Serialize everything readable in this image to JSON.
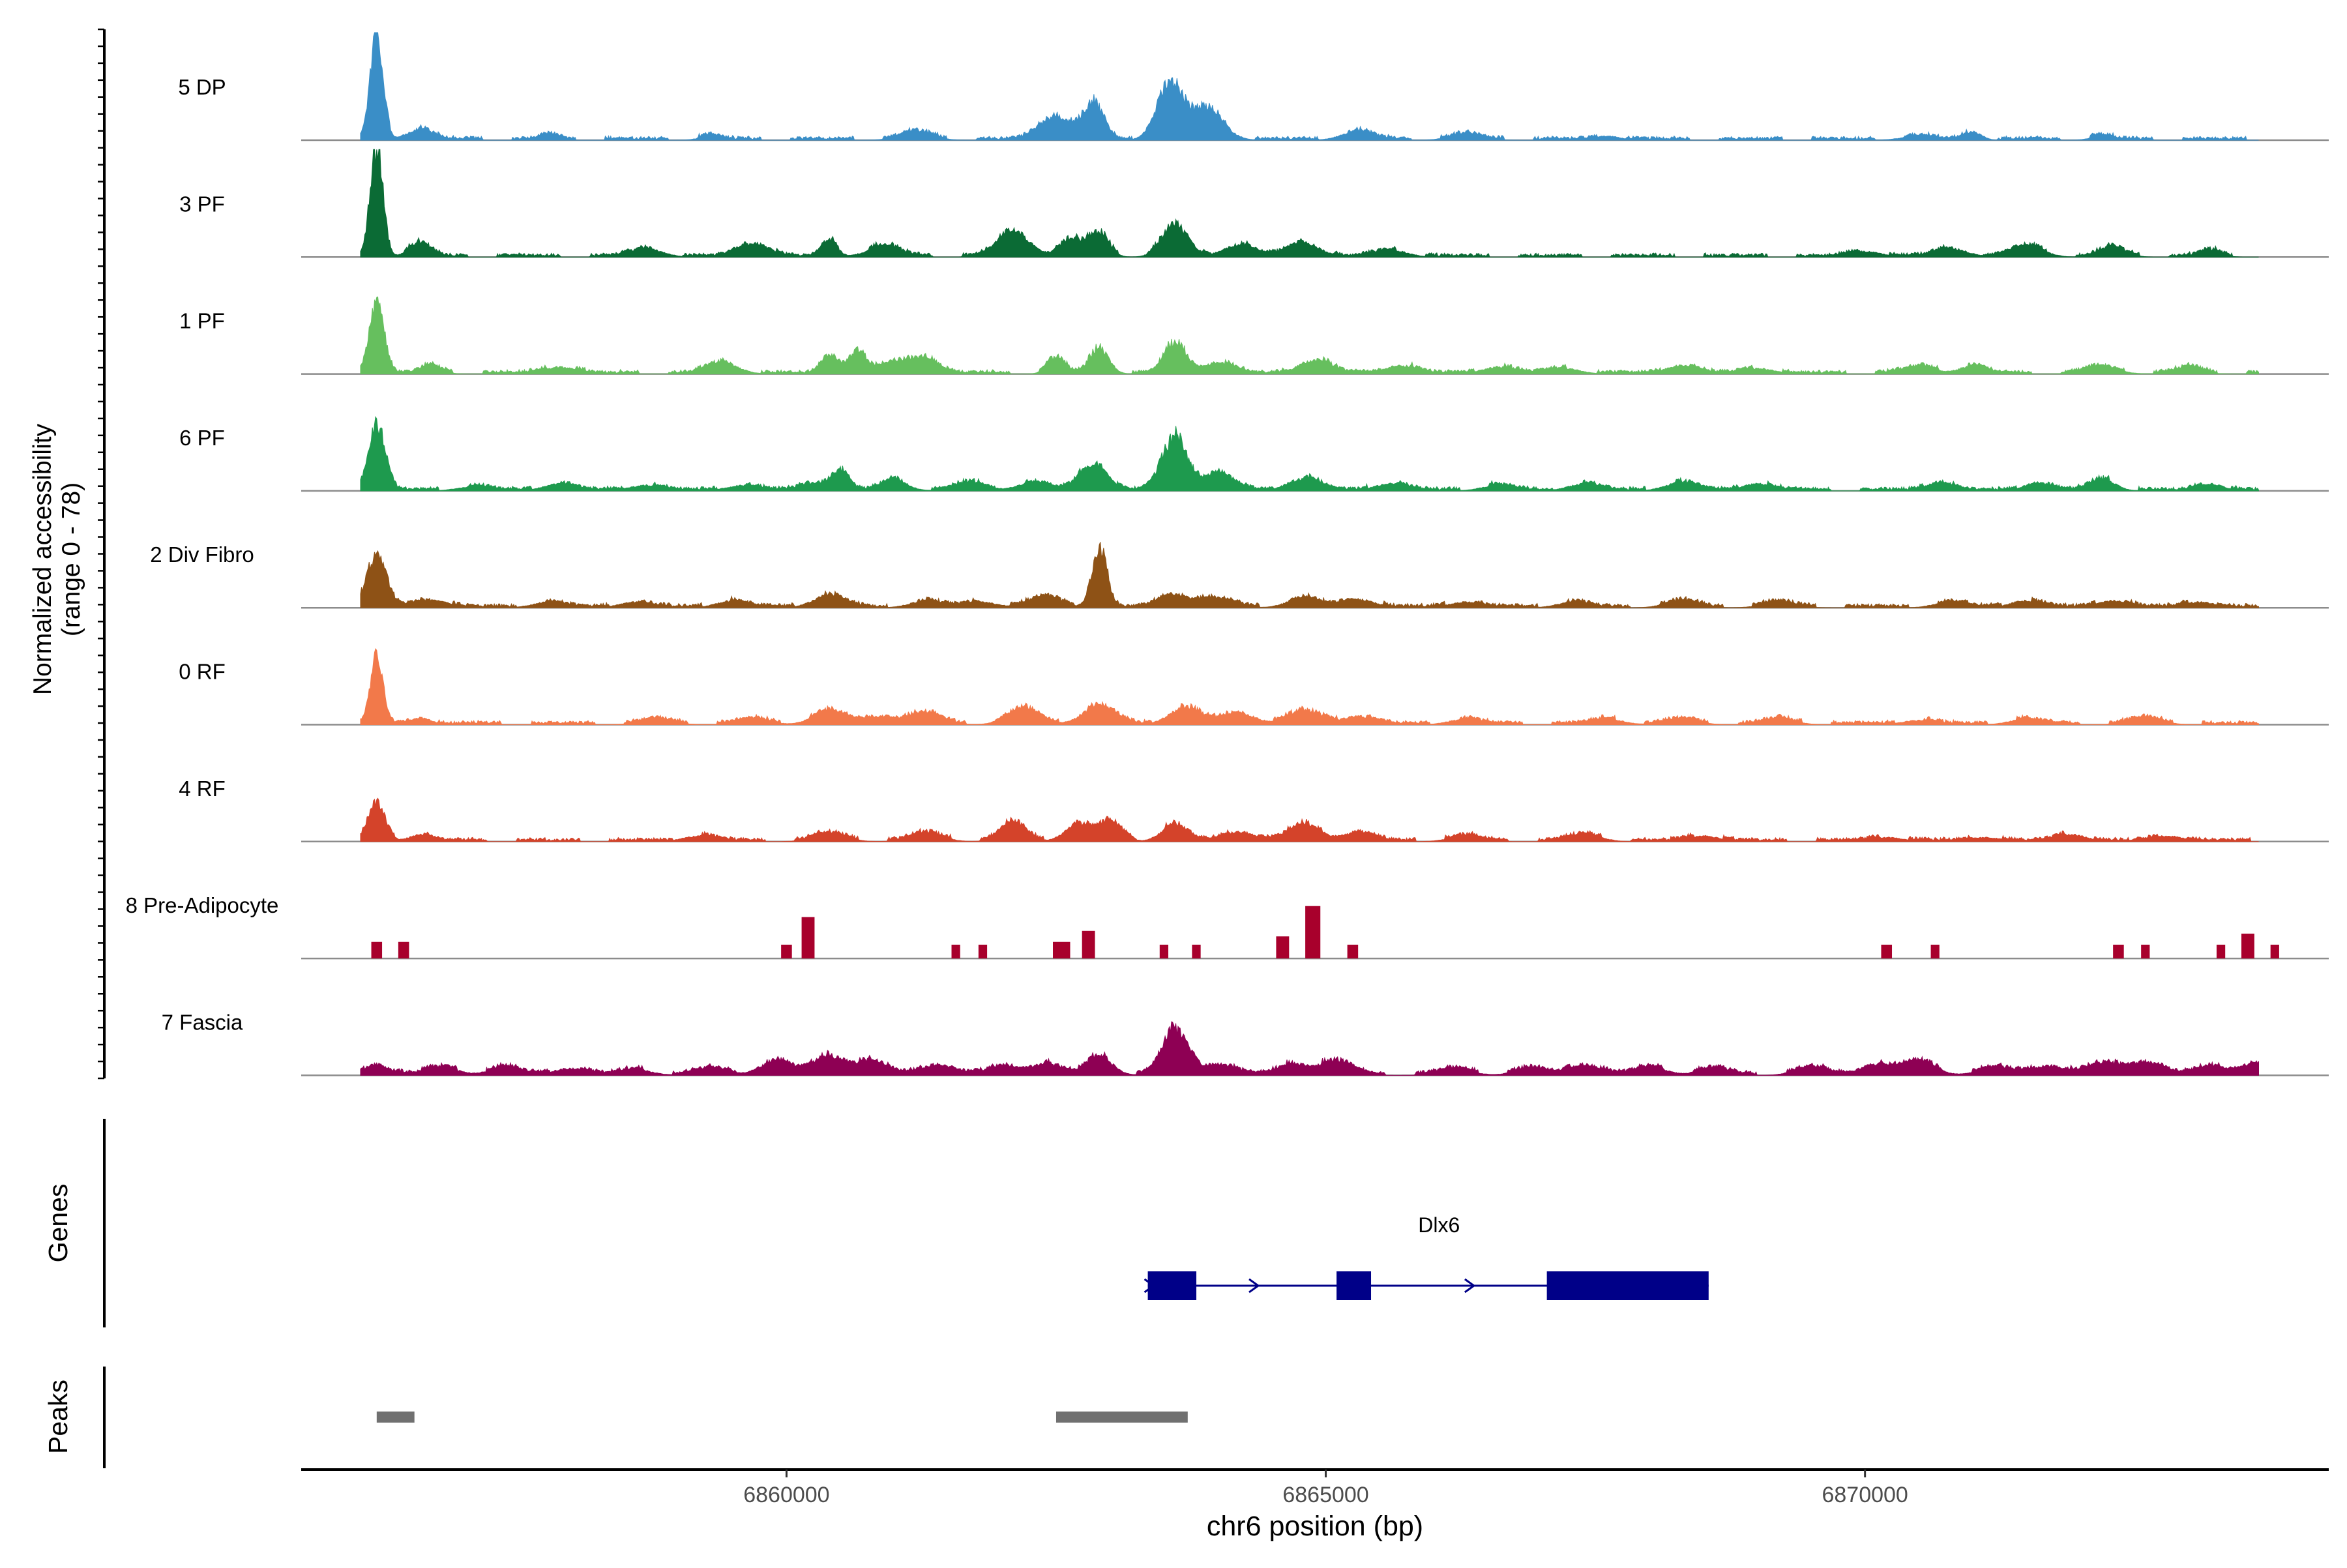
{
  "chart_data": {
    "type": "area",
    "title": "",
    "ylabel_line1": "Normalized accessibility",
    "ylabel_line2": "(range 0 - 78)",
    "ylim": [
      0,
      78
    ],
    "xlabel": "chr6 position (bp)",
    "xlim": [
      6855500,
      6874300
    ],
    "xticks": [
      6860000,
      6865000,
      6870000
    ],
    "xtick_labels": [
      "6860000",
      "6865000",
      "6870000"
    ],
    "tracks": [
      {
        "name": "5 DP",
        "color": "#3A8EC7",
        "peaks": [
          [
            6856200,
            78,
            60
          ],
          [
            6856600,
            8,
            120
          ],
          [
            6857800,
            4,
            80
          ],
          [
            6859300,
            3,
            100
          ],
          [
            6861200,
            6,
            150
          ],
          [
            6862500,
            18,
            150
          ],
          [
            6862850,
            26,
            90
          ],
          [
            6863550,
            40,
            120
          ],
          [
            6863900,
            22,
            150
          ],
          [
            6865300,
            6,
            150
          ],
          [
            6866300,
            4,
            150
          ],
          [
            6867600,
            3,
            120
          ],
          [
            6870500,
            3,
            150
          ],
          [
            6871000,
            6,
            80
          ],
          [
            6872200,
            3,
            100
          ]
        ]
      },
      {
        "name": "3 PF",
        "color": "#0B6B35",
        "peaks": [
          [
            6856200,
            78,
            60
          ],
          [
            6856600,
            10,
            100
          ],
          [
            6858700,
            6,
            150
          ],
          [
            6859700,
            10,
            150
          ],
          [
            6860400,
            12,
            70
          ],
          [
            6860900,
            8,
            150
          ],
          [
            6862100,
            18,
            150
          ],
          [
            6862650,
            12,
            120
          ],
          [
            6862900,
            16,
            90
          ],
          [
            6863600,
            22,
            120
          ],
          [
            6864200,
            9,
            150
          ],
          [
            6864800,
            10,
            150
          ],
          [
            6865600,
            5,
            150
          ],
          [
            6870000,
            4,
            150
          ],
          [
            6870800,
            6,
            150
          ],
          [
            6871500,
            8,
            150
          ],
          [
            6872300,
            7,
            120
          ],
          [
            6873200,
            5,
            100
          ]
        ]
      },
      {
        "name": "1 PF",
        "color": "#66BF5E",
        "peaks": [
          [
            6856200,
            52,
            70
          ],
          [
            6856700,
            6,
            100
          ],
          [
            6857900,
            5,
            150
          ],
          [
            6859400,
            8,
            150
          ],
          [
            6860400,
            14,
            80
          ],
          [
            6860650,
            16,
            80
          ],
          [
            6861000,
            8,
            150
          ],
          [
            6861300,
            12,
            120
          ],
          [
            6862500,
            12,
            80
          ],
          [
            6862900,
            18,
            90
          ],
          [
            6863600,
            22,
            100
          ],
          [
            6864000,
            8,
            150
          ],
          [
            6864900,
            10,
            150
          ],
          [
            6865700,
            6,
            150
          ],
          [
            6866600,
            5,
            150
          ],
          [
            6867200,
            4,
            150
          ],
          [
            6868300,
            6,
            150
          ],
          [
            6869000,
            4,
            150
          ],
          [
            6870500,
            5,
            150
          ],
          [
            6871000,
            6,
            120
          ],
          [
            6872200,
            5,
            150
          ],
          [
            6873000,
            5,
            120
          ]
        ]
      },
      {
        "name": "6 PF",
        "color": "#1E9A4E",
        "peaks": [
          [
            6856200,
            46,
            80
          ],
          [
            6857100,
            3,
            150
          ],
          [
            6857900,
            5,
            150
          ],
          [
            6858700,
            4,
            150
          ],
          [
            6859600,
            4,
            150
          ],
          [
            6860300,
            6,
            150
          ],
          [
            6860500,
            12,
            80
          ],
          [
            6861000,
            8,
            120
          ],
          [
            6861700,
            6,
            150
          ],
          [
            6862300,
            6,
            150
          ],
          [
            6862850,
            20,
            130
          ],
          [
            6863600,
            38,
            120
          ],
          [
            6864000,
            12,
            150
          ],
          [
            6864800,
            9,
            150
          ],
          [
            6865600,
            5,
            150
          ],
          [
            6866600,
            4,
            150
          ],
          [
            6867400,
            5,
            150
          ],
          [
            6868300,
            6,
            150
          ],
          [
            6869000,
            5,
            150
          ],
          [
            6870700,
            7,
            120
          ],
          [
            6871600,
            6,
            120
          ],
          [
            6872200,
            8,
            120
          ],
          [
            6873200,
            5,
            120
          ]
        ]
      },
      {
        "name": "2 Div Fibro",
        "color": "#8E5216",
        "peaks": [
          [
            6856200,
            36,
            90
          ],
          [
            6856700,
            6,
            150
          ],
          [
            6857800,
            4,
            150
          ],
          [
            6858600,
            4,
            150
          ],
          [
            6859500,
            5,
            150
          ],
          [
            6860400,
            9,
            150
          ],
          [
            6861300,
            5,
            150
          ],
          [
            6861800,
            4,
            150
          ],
          [
            6862400,
            8,
            150
          ],
          [
            6862900,
            44,
            70
          ],
          [
            6863600,
            10,
            150
          ],
          [
            6864000,
            6,
            150
          ],
          [
            6864800,
            7,
            150
          ],
          [
            6865300,
            6,
            150
          ],
          [
            6866300,
            4,
            150
          ],
          [
            6867300,
            4,
            150
          ],
          [
            6868300,
            5,
            150
          ],
          [
            6869200,
            4,
            150
          ],
          [
            6870800,
            4,
            150
          ],
          [
            6871500,
            5,
            150
          ],
          [
            6872300,
            5,
            150
          ],
          [
            6873100,
            4,
            150
          ]
        ]
      },
      {
        "name": "0 RF",
        "color": "#F2794A",
        "peaks": [
          [
            6856200,
            48,
            60
          ],
          [
            6856600,
            5,
            100
          ],
          [
            6858800,
            4,
            150
          ],
          [
            6859700,
            4,
            150
          ],
          [
            6860400,
            10,
            150
          ],
          [
            6860900,
            6,
            150
          ],
          [
            6861300,
            8,
            150
          ],
          [
            6862200,
            12,
            150
          ],
          [
            6862900,
            14,
            150
          ],
          [
            6863700,
            12,
            150
          ],
          [
            6864200,
            8,
            150
          ],
          [
            6864800,
            10,
            150
          ],
          [
            6865300,
            6,
            150
          ],
          [
            6866300,
            4,
            150
          ],
          [
            6867600,
            4,
            150
          ],
          [
            6868300,
            4,
            150
          ],
          [
            6869200,
            4,
            150
          ],
          [
            6870500,
            3,
            150
          ],
          [
            6871500,
            4,
            150
          ],
          [
            6872600,
            5,
            150
          ]
        ]
      },
      {
        "name": "4 RF",
        "color": "#D4432A",
        "peaks": [
          [
            6856200,
            26,
            80
          ],
          [
            6856600,
            5,
            100
          ],
          [
            6859200,
            4,
            150
          ],
          [
            6860400,
            6,
            150
          ],
          [
            6861300,
            6,
            150
          ],
          [
            6862100,
            14,
            120
          ],
          [
            6862700,
            12,
            120
          ],
          [
            6863000,
            14,
            110
          ],
          [
            6863600,
            12,
            120
          ],
          [
            6864200,
            7,
            150
          ],
          [
            6864800,
            12,
            150
          ],
          [
            6865300,
            6,
            150
          ],
          [
            6866300,
            4,
            150
          ],
          [
            6867400,
            5,
            150
          ],
          [
            6868500,
            4,
            150
          ],
          [
            6870200,
            3,
            150
          ],
          [
            6871100,
            3,
            150
          ],
          [
            6871900,
            5,
            150
          ],
          [
            6872800,
            4,
            150
          ]
        ]
      },
      {
        "name": "8 Pre-Adipocyte",
        "blocks": true,
        "color": "#A8002C",
        "peaks": [
          [
            6856200,
            12,
            50
          ],
          [
            6856450,
            12,
            50
          ],
          [
            6860000,
            10,
            50
          ],
          [
            6860200,
            30,
            60
          ],
          [
            6861570,
            10,
            40
          ],
          [
            6861820,
            10,
            40
          ],
          [
            6862550,
            12,
            80
          ],
          [
            6862800,
            20,
            60
          ],
          [
            6863500,
            10,
            40
          ],
          [
            6863800,
            10,
            40
          ],
          [
            6864600,
            16,
            60
          ],
          [
            6864880,
            38,
            70
          ],
          [
            6865250,
            10,
            50
          ],
          [
            6870200,
            10,
            50
          ],
          [
            6870650,
            10,
            40
          ],
          [
            6872350,
            10,
            50
          ],
          [
            6872600,
            10,
            40
          ],
          [
            6873300,
            10,
            40
          ],
          [
            6873550,
            18,
            60
          ],
          [
            6873800,
            10,
            40
          ]
        ]
      },
      {
        "name": "7 Fascia",
        "color": "#8E0054",
        "peaks": [
          [
            6856200,
            8,
            120
          ],
          [
            6856800,
            6,
            150
          ],
          [
            6857400,
            6,
            150
          ],
          [
            6858000,
            5,
            150
          ],
          [
            6858600,
            4,
            150
          ],
          [
            6859300,
            5,
            150
          ],
          [
            6859900,
            10,
            150
          ],
          [
            6860400,
            14,
            150
          ],
          [
            6860800,
            10,
            150
          ],
          [
            6861400,
            8,
            150
          ],
          [
            6862000,
            6,
            150
          ],
          [
            6862400,
            8,
            150
          ],
          [
            6862900,
            14,
            120
          ],
          [
            6863600,
            32,
            120
          ],
          [
            6864000,
            8,
            150
          ],
          [
            6864700,
            8,
            150
          ],
          [
            6865100,
            10,
            150
          ],
          [
            6866200,
            5,
            150
          ],
          [
            6866900,
            5,
            150
          ],
          [
            6867400,
            8,
            150
          ],
          [
            6868000,
            6,
            150
          ],
          [
            6868600,
            5,
            150
          ],
          [
            6869500,
            6,
            150
          ],
          [
            6870100,
            8,
            150
          ],
          [
            6870500,
            10,
            150
          ],
          [
            6871200,
            6,
            150
          ],
          [
            6871700,
            7,
            150
          ],
          [
            6872200,
            8,
            150
          ],
          [
            6872600,
            10,
            150
          ],
          [
            6873200,
            6,
            150
          ],
          [
            6873600,
            8,
            150
          ]
        ]
      }
    ],
    "genes": {
      "label": "Genes",
      "gene_name": "Dlx6",
      "strand": "+",
      "start": 6863350,
      "end": 6868550,
      "exons": [
        [
          6863350,
          6863800
        ],
        [
          6865100,
          6865420
        ],
        [
          6867050,
          6868550
        ]
      ]
    },
    "peaks_track": {
      "label": "Peaks",
      "regions": [
        [
          6856200,
          6856550
        ],
        [
          6862500,
          6863720
        ]
      ]
    },
    "colors": {
      "baseline": "#8c8c8c",
      "axis": "#000000",
      "gene": "#000088",
      "peak_region": "#707070",
      "text": "#000000"
    }
  }
}
